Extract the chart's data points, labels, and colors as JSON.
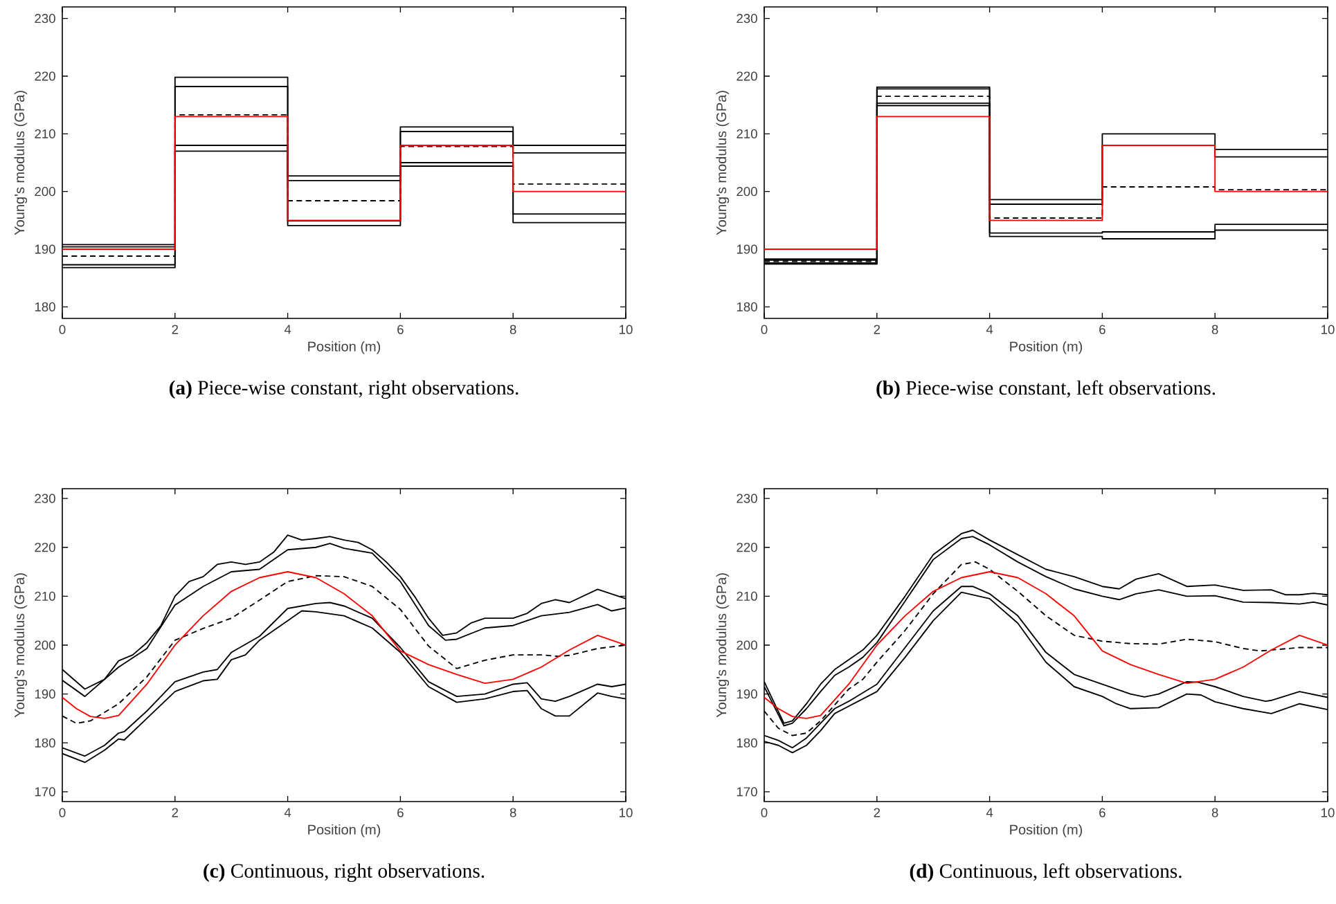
{
  "chart_data": [
    {
      "type": "step",
      "title": "**(a)** Piece-wise constant, right observations.",
      "xlabel": "Position (m)",
      "ylabel": "Young's modulus (GPa)",
      "xlim": [
        0,
        10
      ],
      "ylim": [
        178,
        232
      ],
      "xticks": [
        0,
        2,
        4,
        6,
        8,
        10
      ],
      "yticks": [
        180,
        190,
        200,
        210,
        220,
        230
      ],
      "series": [
        {
          "color": "#000000",
          "line_style": "solid",
          "x": [
            0,
            2,
            4,
            6,
            8,
            10
          ],
          "values": [
            190.8,
            219.8,
            202.7,
            211.2,
            208,
            208
          ]
        },
        {
          "color": "#000000",
          "line_style": "solid",
          "x": [
            0,
            2,
            4,
            6,
            8,
            10
          ],
          "values": [
            190.4,
            218.2,
            201.9,
            210.4,
            206.7,
            206.7
          ]
        },
        {
          "color": "#000000",
          "line_style": "solid",
          "x": [
            0,
            2,
            4,
            6,
            8,
            10
          ],
          "values": [
            187.3,
            208,
            194.9,
            205,
            196.1,
            196.1
          ]
        },
        {
          "color": "#000000",
          "line_style": "solid",
          "x": [
            0,
            2,
            4,
            6,
            8,
            10
          ],
          "values": [
            186.8,
            207,
            194.1,
            204.4,
            194.6,
            194.6
          ]
        },
        {
          "color": "#000000",
          "line_style": "dashed",
          "x": [
            0,
            2,
            4,
            6,
            8,
            10
          ],
          "values": [
            188.8,
            213.3,
            198.4,
            207.8,
            201.3,
            201.3
          ]
        },
        {
          "color": "#ff0000",
          "line_style": "solid",
          "x": [
            0,
            2,
            4,
            6,
            8,
            10
          ],
          "values": [
            190,
            213,
            195,
            208,
            200,
            200
          ]
        }
      ]
    },
    {
      "type": "step",
      "title": "**(b)** Piece-wise constant, left observations.",
      "xlabel": "Position (m)",
      "ylabel": "Young's modulus (GPa)",
      "xlim": [
        0,
        10
      ],
      "ylim": [
        178,
        232
      ],
      "xticks": [
        0,
        2,
        4,
        6,
        8,
        10
      ],
      "yticks": [
        180,
        190,
        200,
        210,
        220,
        230
      ],
      "series": [
        {
          "color": "#000000",
          "line_style": "solid",
          "x": [
            0,
            2,
            4,
            6,
            8,
            10
          ],
          "values": [
            188.3,
            218.1,
            198.6,
            210,
            207.3,
            207.3
          ]
        },
        {
          "color": "#000000",
          "line_style": "solid",
          "x": [
            0,
            2,
            4,
            6,
            8,
            10
          ],
          "values": [
            188.1,
            217.8,
            197.8,
            208,
            206,
            206
          ]
        },
        {
          "color": "#000000",
          "line_style": "solid",
          "x": [
            0,
            2,
            4,
            6,
            8,
            10
          ],
          "values": [
            187.6,
            215.3,
            192.8,
            193,
            194.3,
            194.3
          ]
        },
        {
          "color": "#000000",
          "line_style": "solid",
          "x": [
            0,
            2,
            4,
            6,
            8,
            10
          ],
          "values": [
            187.4,
            214.9,
            192.2,
            191.8,
            193.3,
            193.3
          ]
        },
        {
          "color": "#000000",
          "line_style": "dashed",
          "x": [
            0,
            2,
            4,
            6,
            8,
            10
          ],
          "values": [
            187.9,
            216.5,
            195.4,
            200.8,
            200.3,
            200.3
          ]
        },
        {
          "color": "#ff0000",
          "line_style": "solid",
          "x": [
            0,
            2,
            4,
            6,
            8,
            10
          ],
          "values": [
            190,
            213,
            195,
            208,
            200,
            200
          ]
        }
      ]
    },
    {
      "type": "line",
      "title": "**(c)** Continuous, right observations.",
      "xlabel": "Position (m)",
      "ylabel": "Young's modulus (GPa)",
      "xlim": [
        0,
        10
      ],
      "ylim": [
        168,
        232
      ],
      "xticks": [
        0,
        2,
        4,
        6,
        8,
        10
      ],
      "yticks": [
        170,
        180,
        190,
        200,
        210,
        220,
        230
      ],
      "series": [
        {
          "color": "#000000",
          "line_style": "solid",
          "x": [
            0,
            0.4,
            0.75,
            1,
            1.25,
            1.5,
            1.75,
            2,
            2.25,
            2.5,
            2.75,
            3,
            3.25,
            3.5,
            3.75,
            4,
            4.25,
            4.5,
            4.75,
            5,
            5.25,
            5.5,
            5.75,
            6,
            6.25,
            6.5,
            6.75,
            7,
            7.25,
            7.5,
            8,
            8.25,
            8.5,
            8.75,
            9,
            9.5,
            10
          ],
          "values": [
            195,
            191,
            193,
            196.8,
            198,
            200.5,
            204,
            210,
            213,
            214,
            216.5,
            217,
            216.5,
            217,
            219,
            222.5,
            221.5,
            221.8,
            222.2,
            221.5,
            221,
            219.5,
            217,
            214,
            210,
            205.5,
            202,
            202.5,
            204.5,
            205.5,
            205.5,
            206.5,
            208.5,
            209.3,
            208.7,
            211.4,
            209.5
          ]
        },
        {
          "color": "#000000",
          "line_style": "solid",
          "x": [
            0,
            0.4,
            1,
            1.5,
            2,
            2.5,
            3,
            3.5,
            4,
            4.5,
            4.75,
            5,
            5.5,
            6,
            6.5,
            6.8,
            7,
            7.5,
            8,
            8.5,
            9,
            9.5,
            9.75,
            10
          ],
          "values": [
            192.8,
            189.5,
            195.5,
            199.3,
            208.2,
            212,
            215,
            215.5,
            219.5,
            220,
            220.8,
            219.8,
            218.8,
            213,
            204,
            201,
            201.2,
            203.5,
            204,
            206,
            206.7,
            208.3,
            207,
            207.6
          ]
        },
        {
          "color": "#000000",
          "line_style": "solid",
          "x": [
            0,
            0.4,
            0.75,
            1,
            1.1,
            1.5,
            2,
            2.5,
            2.75,
            3,
            3.5,
            4,
            4.5,
            4.75,
            5,
            5.5,
            6,
            6.5,
            7,
            7.5,
            8,
            8.25,
            8.5,
            8.75,
            9,
            9.5,
            9.75,
            10
          ],
          "values": [
            179,
            177.3,
            179.5,
            182,
            182.3,
            186.5,
            192.5,
            194.5,
            195,
            198.5,
            201.8,
            207.5,
            208.5,
            208.7,
            208,
            205.5,
            199.5,
            192.5,
            189.5,
            190,
            192,
            192.3,
            189,
            188.5,
            189.5,
            192,
            191.5,
            192
          ]
        },
        {
          "color": "#000000",
          "line_style": "solid",
          "x": [
            0,
            0.4,
            0.75,
            1,
            1.1,
            1.5,
            2,
            2.5,
            2.75,
            3,
            3.25,
            3.5,
            4,
            4.25,
            4.5,
            5,
            5.5,
            6,
            6.5,
            7,
            7.5,
            8,
            8.25,
            8.5,
            8.75,
            9,
            9.5,
            9.75,
            10
          ],
          "values": [
            177.8,
            176,
            178.5,
            180.8,
            180.6,
            185,
            190.5,
            192.7,
            193,
            197,
            198,
            201,
            205,
            207,
            206.8,
            206,
            203.5,
            198.5,
            191.5,
            188.3,
            189,
            190.5,
            190.7,
            187,
            185.5,
            185.5,
            190.2,
            189.5,
            189
          ]
        },
        {
          "color": "#000000",
          "line_style": "dashed",
          "x": [
            0,
            0.25,
            0.5,
            1,
            1.5,
            2,
            2.5,
            3,
            3.5,
            4,
            4.5,
            5,
            5.5,
            6,
            6.5,
            7,
            7.5,
            8,
            8.5,
            8.8,
            9,
            9.5,
            10
          ],
          "values": [
            185.5,
            184,
            184.5,
            188,
            193.5,
            201,
            203.4,
            205.5,
            209.2,
            213,
            214.2,
            214,
            212,
            207.3,
            199.8,
            195.2,
            196.9,
            198,
            198,
            197.7,
            197.9,
            199.3,
            200
          ]
        },
        {
          "color": "#ff0000",
          "line_style": "solid",
          "x": [
            0,
            0.25,
            0.5,
            0.75,
            1,
            1.5,
            2,
            2.5,
            3,
            3.5,
            4,
            4.5,
            5,
            5.5,
            6,
            6.5,
            7,
            7.5,
            8,
            8.5,
            9,
            9.5,
            10
          ],
          "values": [
            189.3,
            187,
            185.4,
            185,
            185.6,
            192,
            200,
            206,
            211,
            213.8,
            215,
            213.8,
            210.5,
            206,
            198.8,
            196,
            194,
            192.2,
            193,
            195.5,
            199,
            202,
            200
          ]
        }
      ]
    },
    {
      "type": "line",
      "title": "**(d)** Continuous, left observations.",
      "xlabel": "Position (m)",
      "ylabel": "Young's modulus (GPa)",
      "xlim": [
        0,
        10
      ],
      "ylim": [
        168,
        232
      ],
      "xticks": [
        0,
        2,
        4,
        6,
        8,
        10
      ],
      "yticks": [
        170,
        180,
        190,
        200,
        210,
        220,
        230
      ],
      "series": [
        {
          "color": "#000000",
          "line_style": "solid",
          "x": [
            0,
            0.35,
            0.5,
            0.75,
            1,
            1.25,
            1.5,
            1.75,
            2,
            2.5,
            3,
            3.5,
            3.7,
            4,
            4.5,
            5,
            5.5,
            6,
            6.3,
            6.6,
            7,
            7.5,
            8,
            8.5,
            9,
            9.25,
            9.5,
            9.75,
            10
          ],
          "values": [
            192.5,
            184,
            184.5,
            188,
            192,
            195,
            197,
            199,
            202,
            210,
            218.5,
            222.8,
            223.5,
            221.5,
            218.5,
            215.5,
            214,
            212,
            211.5,
            213.5,
            214.6,
            212,
            212.3,
            211.2,
            211.3,
            210.3,
            210.3,
            210.6,
            210.3
          ]
        },
        {
          "color": "#000000",
          "line_style": "solid",
          "x": [
            0,
            0.35,
            0.5,
            0.75,
            1,
            1.25,
            1.5,
            1.75,
            2,
            2.5,
            3,
            3.5,
            3.7,
            4,
            4.5,
            5,
            5.5,
            6,
            6.3,
            6.6,
            7,
            7.5,
            8,
            8.5,
            9,
            9.5,
            9.75,
            10
          ],
          "values": [
            191.5,
            183.5,
            184,
            187,
            190.5,
            193.8,
            195.5,
            197.5,
            200.5,
            209,
            217.5,
            221.8,
            222.2,
            220.5,
            217,
            214,
            211.5,
            210,
            209.3,
            210.5,
            211.3,
            210,
            210.1,
            208.8,
            208.7,
            208.4,
            208.8,
            208.2
          ]
        },
        {
          "color": "#000000",
          "line_style": "solid",
          "x": [
            0,
            0.25,
            0.5,
            0.75,
            1,
            1.25,
            1.5,
            2,
            2.5,
            3,
            3.5,
            3.7,
            4,
            4.5,
            5,
            5.5,
            6,
            6.5,
            6.75,
            7,
            7.5,
            7.7,
            8,
            8.5,
            8.9,
            9,
            9.5,
            10
          ],
          "values": [
            181.5,
            180.5,
            179,
            181,
            184,
            187,
            188.5,
            192,
            199.5,
            207,
            212,
            212,
            210.5,
            206,
            198.5,
            194,
            192,
            190,
            189.4,
            190,
            192.5,
            192.4,
            191.5,
            189.5,
            188.5,
            188.7,
            190.5,
            189.3
          ]
        },
        {
          "color": "#000000",
          "line_style": "solid",
          "x": [
            0,
            0.25,
            0.5,
            0.75,
            1,
            1.25,
            1.5,
            2,
            2.5,
            3,
            3.5,
            4,
            4.5,
            5,
            5.5,
            6,
            6.25,
            6.5,
            7,
            7.5,
            7.75,
            8,
            8.5,
            9,
            9.5,
            10
          ],
          "values": [
            180.3,
            179.5,
            178,
            179.5,
            182.5,
            186,
            187.5,
            190.5,
            197.5,
            205,
            210.8,
            209.5,
            204.5,
            196.5,
            191.5,
            189.5,
            188,
            187,
            187.2,
            190,
            189.8,
            188.4,
            187,
            186,
            188,
            186.8
          ]
        },
        {
          "color": "#000000",
          "line_style": "dashed",
          "x": [
            0,
            0.25,
            0.5,
            0.75,
            1,
            1.5,
            1.75,
            2,
            2.5,
            3,
            3.5,
            3.75,
            4,
            4.5,
            5,
            5.5,
            6,
            6.5,
            7,
            7.5,
            8,
            8.5,
            8.8,
            9,
            9.5,
            10
          ],
          "values": [
            186.5,
            183,
            181.5,
            182,
            184.5,
            191,
            193,
            196.5,
            203,
            210.5,
            216.5,
            217,
            215.5,
            211,
            206,
            202,
            200.8,
            200.3,
            200.2,
            201.2,
            200.7,
            199.3,
            198.8,
            199,
            199.5,
            199.5
          ]
        },
        {
          "color": "#ff0000",
          "line_style": "solid",
          "x": [
            0,
            0.25,
            0.5,
            0.75,
            1,
            1.5,
            2,
            2.5,
            3,
            3.5,
            4,
            4.5,
            5,
            5.5,
            6,
            6.5,
            7,
            7.5,
            8,
            8.5,
            9,
            9.5,
            10
          ],
          "values": [
            189.3,
            187,
            185.4,
            185,
            185.6,
            192,
            200,
            206,
            211,
            213.8,
            215,
            213.8,
            210.5,
            206,
            198.8,
            196,
            194,
            192.2,
            193,
            195.5,
            199,
            202,
            200
          ]
        }
      ]
    }
  ]
}
